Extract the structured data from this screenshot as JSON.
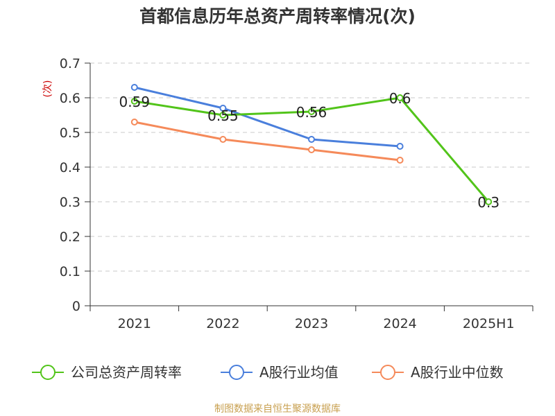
{
  "chart_data": {
    "type": "line",
    "title": "首都信息历年总资产周转率情况(次)",
    "ylabel": "(次)",
    "xlabel": "",
    "categories": [
      "2021",
      "2022",
      "2023",
      "2024",
      "2025H1"
    ],
    "ylim": [
      0,
      0.7
    ],
    "yticks": [
      0,
      0.1,
      0.2,
      0.3,
      0.4,
      0.5,
      0.6,
      0.7
    ],
    "ytick_labels": [
      "0",
      "0.1",
      "0.2",
      "0.3",
      "0.4",
      "0.5",
      "0.6",
      "0.7"
    ],
    "grid": true,
    "legend_position": "bottom",
    "series": [
      {
        "name": "公司总资产周转率",
        "color": "#52c41a",
        "values": [
          0.59,
          0.55,
          0.56,
          0.6,
          0.3
        ],
        "data_labels": [
          "0.59",
          "0.55",
          "0.56",
          "0.6",
          "0.3"
        ]
      },
      {
        "name": "A股行业均值",
        "color": "#4a7fdc",
        "values": [
          0.63,
          0.57,
          0.48,
          0.46,
          null
        ]
      },
      {
        "name": "A股行业中位数",
        "color": "#f58a5a",
        "values": [
          0.53,
          0.48,
          0.45,
          0.42,
          null
        ]
      }
    ]
  },
  "source": "制图数据来自恒生聚源数据库"
}
